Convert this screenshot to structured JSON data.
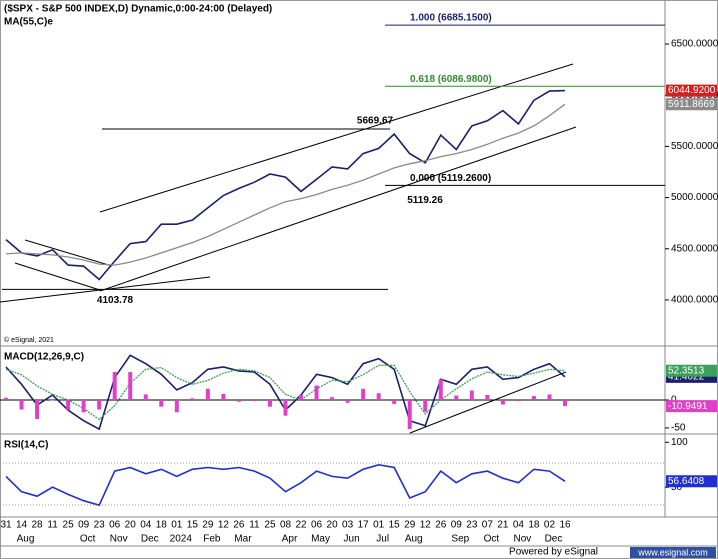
{
  "chart_data": [
    {
      "type": "line",
      "title": "($SPX - S&P 500 INDEX,D) Dynamic,0:00-24:00 (Delayed)",
      "watermark": "© eSignal, 2021",
      "categories": [
        "31",
        "14",
        "28",
        "11",
        "25",
        "09",
        "23",
        "06",
        "20",
        "04",
        "18",
        "01",
        "15",
        "29",
        "12",
        "26",
        "11",
        "25",
        "08",
        "22",
        "06",
        "20",
        "03",
        "17",
        "01",
        "15",
        "29",
        "12",
        "26",
        "09",
        "23",
        "07",
        "21",
        "04",
        "18",
        "02",
        "16"
      ],
      "month_labels": [
        null,
        "Aug",
        null,
        null,
        null,
        "Oct",
        null,
        "Nov",
        null,
        "Dec",
        null,
        "2024",
        null,
        "Feb",
        null,
        "Mar",
        null,
        null,
        "Apr",
        null,
        "May",
        null,
        "Jun",
        null,
        "Jul",
        null,
        "Aug",
        null,
        null,
        "Sep",
        null,
        "Oct",
        null,
        "Nov",
        null,
        "Dec",
        null
      ],
      "ylim": [
        3560,
        6930
      ],
      "yticks": [
        {
          "value": 6500,
          "label": "6500.0000"
        },
        {
          "value": 6000,
          "label": "6000.0000"
        },
        {
          "value": 5500,
          "label": "5500.0000"
        },
        {
          "value": 5000,
          "label": "5000.0000"
        },
        {
          "value": 4500,
          "label": "4500.0000"
        },
        {
          "value": 4000,
          "label": "4000.0000"
        }
      ],
      "series": [
        {
          "color": "#1a1f6e",
          "values": [
            4590,
            4460,
            4430,
            4490,
            4340,
            4330,
            4200,
            4380,
            4550,
            4570,
            4740,
            4740,
            4780,
            4900,
            5020,
            5090,
            5150,
            5230,
            5200,
            5060,
            5180,
            5300,
            5280,
            5430,
            5480,
            5620,
            5430,
            5340,
            5610,
            5470,
            5700,
            5750,
            5850,
            5720,
            5950,
            6040,
            6044.92
          ],
          "value_labels": [
            null,
            null,
            null,
            null,
            null,
            null,
            null,
            null,
            null,
            null,
            null,
            null,
            null,
            null,
            null,
            null,
            null,
            null,
            null,
            null,
            null,
            null,
            null,
            null,
            null,
            null,
            null,
            null,
            null,
            null,
            null,
            null,
            null,
            null,
            null,
            null,
            "6044.9200"
          ]
        },
        {
          "name": "MA(55,C)e",
          "color": "#8a8a8a",
          "values": [
            4450,
            4460,
            4450,
            4440,
            4420,
            4390,
            4350,
            4340,
            4370,
            4410,
            4460,
            4510,
            4560,
            4620,
            4690,
            4760,
            4830,
            4900,
            4960,
            4990,
            5030,
            5080,
            5120,
            5170,
            5230,
            5290,
            5330,
            5360,
            5400,
            5430,
            5470,
            5520,
            5580,
            5630,
            5700,
            5800,
            5911.8669
          ]
        }
      ],
      "fib_levels": [
        {
          "label": "1.000 (6685.1500)",
          "value": 6685.15,
          "color": "#1a1f6e"
        },
        {
          "label": "0.618 (6086.9800)",
          "value": 6086.98,
          "color": "#2e8b2e"
        },
        {
          "label": "0.000 (5119.2600)",
          "value": 5119.26,
          "color": "#000000"
        }
      ],
      "price_levels": [
        {
          "label": "5669.67",
          "value": 5669.67
        },
        {
          "label": "4103.78",
          "value": 4103.78
        }
      ],
      "annotations": [
        {
          "label": "5119.26",
          "value": 5119.26
        }
      ]
    },
    {
      "type": "line",
      "title": "MACD(12,26,9,C)",
      "ylim": [
        -59,
        93
      ],
      "yticks": [
        0,
        -50
      ],
      "series": [
        {
          "color": "#1a1f6e",
          "values": [
            59,
            28,
            -9,
            9,
            -18,
            -37,
            -52,
            40,
            80,
            65,
            46,
            18,
            31,
            55,
            59,
            52,
            50,
            28,
            -18,
            9,
            46,
            40,
            28,
            65,
            74,
            55,
            -37,
            -46,
            37,
            28,
            55,
            59,
            37,
            40,
            55,
            65,
            41.4022
          ]
        },
        {
          "color": "#3aa05a",
          "values": [
            55,
            45,
            25,
            10,
            0,
            -15,
            -35,
            -10,
            30,
            55,
            58,
            40,
            28,
            35,
            48,
            55,
            52,
            40,
            10,
            0,
            20,
            35,
            33,
            45,
            62,
            62,
            15,
            -25,
            0,
            20,
            38,
            50,
            45,
            42,
            48,
            55,
            52.3513
          ]
        },
        {
          "type": "bar",
          "color": "#e040c8",
          "values": [
            4,
            -17,
            -34,
            -1,
            -18,
            -22,
            -17,
            50,
            50,
            10,
            -12,
            -22,
            3,
            20,
            11,
            -3,
            -2,
            -12,
            -28,
            9,
            26,
            5,
            -5,
            20,
            12,
            -7,
            -52,
            -21,
            37,
            8,
            17,
            9,
            -8,
            -2,
            7,
            10,
            -10.9491
          ]
        }
      ]
    },
    {
      "type": "line",
      "title": "RSI(14,C)",
      "ylim": [
        18,
        107
      ],
      "yticks": [
        100,
        50
      ],
      "series": [
        {
          "color": "#2030d0",
          "values": [
            62,
            45,
            40,
            50,
            42,
            35,
            30,
            68,
            72,
            65,
            70,
            62,
            70,
            72,
            70,
            72,
            68,
            60,
            45,
            55,
            68,
            62,
            60,
            70,
            75,
            72,
            38,
            45,
            68,
            55,
            65,
            68,
            60,
            55,
            70,
            68,
            56.6408
          ]
        }
      ]
    }
  ],
  "footer": {
    "text": "Powered by eSignal",
    "url": "www.esignal.com"
  }
}
